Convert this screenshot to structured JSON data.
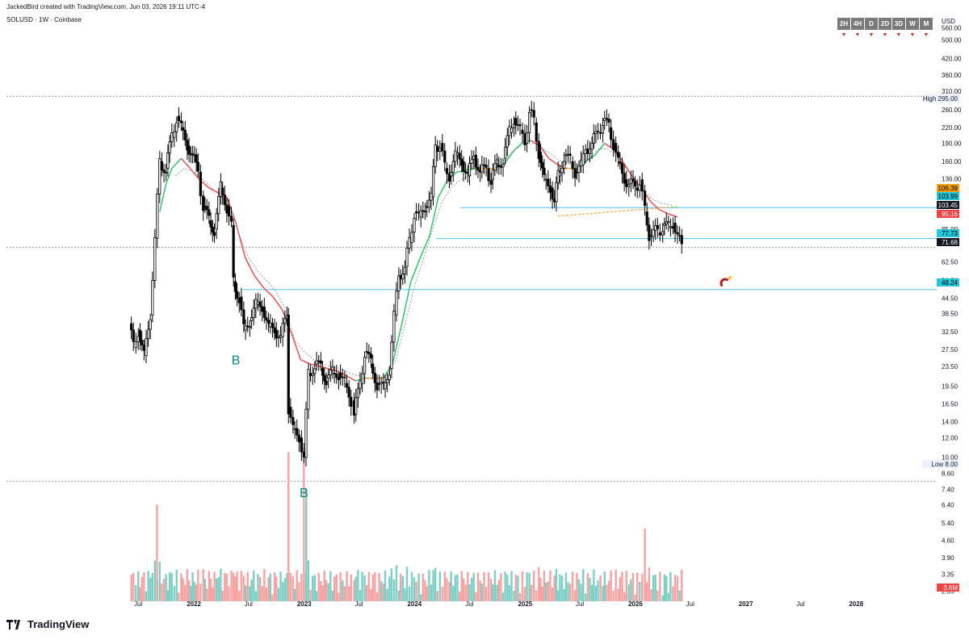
{
  "header": {
    "created_text": "JackedBird created with TradingView.com, Jun 03, 2026 19:11 UTC-4",
    "symbol_text": "SOLUSD · 1W · Coinbase",
    "currency": "USD",
    "timeframes": [
      "2H",
      "4H",
      "D",
      "2D",
      "3D",
      "W",
      "M"
    ]
  },
  "footer": {
    "brand": "TradingView",
    "logo_icon": "tradingview-logo-icon"
  },
  "colors": {
    "up": "#000000",
    "down": "#000000",
    "vol_up": "#7ecfc5",
    "vol_down": "#f5a3a3",
    "ma_up": "#22c55e",
    "ma_down": "#ef4444",
    "ma_mid": "#f59e0b",
    "level_line": "#4fc3f7"
  },
  "chart_data": {
    "type": "candlestick",
    "scale": "log",
    "y_ticks": [
      "560.00",
      "500.00",
      "420.00",
      "360.00",
      "310.00",
      "260.00",
      "220.00",
      "190.00",
      "160.00",
      "136.00",
      "85.00",
      "62.50",
      "52.50",
      "44.50",
      "38.50",
      "32.50",
      "27.50",
      "23.50",
      "19.50",
      "16.50",
      "14.00",
      "12.00",
      "10.00",
      "8.60",
      "7.40",
      "6.40",
      "5.40",
      "4.60",
      "3.90",
      "3.35",
      "2.85"
    ],
    "x_ticks": [
      "Jul",
      "2022",
      "Jul",
      "2023",
      "Jul",
      "2024",
      "Jul",
      "2025",
      "Jul",
      "2026",
      "Jul",
      "2027",
      "Jul",
      "2028"
    ],
    "price_labels": [
      {
        "text": "High 295.00",
        "value": 295,
        "color": "#eef2ff",
        "text_color": "#131722"
      },
      {
        "text": "106.39",
        "value": 106.39,
        "color": "#f59e0b",
        "text_color": "#000"
      },
      {
        "text": "103.99",
        "value": 103.99,
        "color": "#26c6da",
        "text_color": "#000"
      },
      {
        "text": "103.45",
        "value": 103.45,
        "color": "#131722",
        "text_color": "#fff"
      },
      {
        "text": "95.16",
        "value": 95.16,
        "color": "#ef4444",
        "text_color": "#fff"
      },
      {
        "text": "77.73",
        "value": 77.73,
        "color": "#26c6da",
        "text_color": "#000"
      },
      {
        "text": "71.68",
        "value": 71.68,
        "color": "#131722",
        "text_color": "#fff"
      },
      {
        "text": "48.24",
        "value": 48.24,
        "color": "#26c6da",
        "text_color": "#000"
      },
      {
        "text": "Low 8.00",
        "value": 8.0,
        "color": "#eef2ff",
        "text_color": "#131722"
      },
      {
        "text": "3.6M",
        "value": null,
        "color": "#ef4444",
        "text_color": "#fff"
      }
    ],
    "horizontal_levels": [
      295,
      103.99,
      77.73,
      71.68,
      48.24,
      8.0
    ],
    "annotations": [
      {
        "text": "B",
        "date": "2022-05-20",
        "price": 25
      },
      {
        "text": "B",
        "date": "2022-12-31",
        "price": 7.2
      }
    ],
    "series": [
      {
        "name": "SOLUSD",
        "kind": "close",
        "points": [
          [
            "2021-06-01",
            35
          ],
          [
            "2021-06-15",
            28
          ],
          [
            "2021-07-01",
            33
          ],
          [
            "2021-07-20",
            26
          ],
          [
            "2021-08-10",
            38
          ],
          [
            "2021-08-25",
            78
          ],
          [
            "2021-09-10",
            160
          ],
          [
            "2021-10-01",
            150
          ],
          [
            "2021-10-20",
            200
          ],
          [
            "2021-11-05",
            245
          ],
          [
            "2021-11-20",
            220
          ],
          [
            "2021-12-10",
            185
          ],
          [
            "2021-12-28",
            170
          ],
          [
            "2022-01-15",
            145
          ],
          [
            "2022-02-01",
            105
          ],
          [
            "2022-02-20",
            92
          ],
          [
            "2022-03-10",
            85
          ],
          [
            "2022-03-31",
            125
          ],
          [
            "2022-04-20",
            105
          ],
          [
            "2022-05-05",
            88
          ],
          [
            "2022-05-12",
            52
          ],
          [
            "2022-05-31",
            45
          ],
          [
            "2022-06-15",
            33
          ],
          [
            "2022-07-05",
            36
          ],
          [
            "2022-07-25",
            42
          ],
          [
            "2022-08-15",
            41
          ],
          [
            "2022-09-05",
            34
          ],
          [
            "2022-09-25",
            33
          ],
          [
            "2022-10-15",
            31
          ],
          [
            "2022-11-05",
            38
          ],
          [
            "2022-11-10",
            16
          ],
          [
            "2022-11-25",
            13
          ],
          [
            "2022-12-15",
            12
          ],
          [
            "2022-12-31",
            10
          ],
          [
            "2023-01-15",
            22
          ],
          [
            "2023-02-05",
            24
          ],
          [
            "2023-02-25",
            23
          ],
          [
            "2023-03-15",
            21
          ],
          [
            "2023-04-05",
            22
          ],
          [
            "2023-04-25",
            22
          ],
          [
            "2023-05-15",
            20
          ],
          [
            "2023-06-05",
            17
          ],
          [
            "2023-06-15",
            15
          ],
          [
            "2023-07-05",
            20
          ],
          [
            "2023-07-20",
            27
          ],
          [
            "2023-08-10",
            24
          ],
          [
            "2023-08-30",
            20
          ],
          [
            "2023-09-20",
            19
          ],
          [
            "2023-10-10",
            23
          ],
          [
            "2023-10-25",
            38
          ],
          [
            "2023-11-10",
            55
          ],
          [
            "2023-11-30",
            60
          ],
          [
            "2023-12-15",
            75
          ],
          [
            "2023-12-31",
            100
          ],
          [
            "2024-01-15",
            95
          ],
          [
            "2024-02-05",
            105
          ],
          [
            "2024-02-25",
            115
          ],
          [
            "2024-03-10",
            185
          ],
          [
            "2024-03-25",
            190
          ],
          [
            "2024-04-10",
            150
          ],
          [
            "2024-04-25",
            140
          ],
          [
            "2024-05-15",
            170
          ],
          [
            "2024-06-05",
            160
          ],
          [
            "2024-06-25",
            140
          ],
          [
            "2024-07-15",
            170
          ],
          [
            "2024-08-05",
            145
          ],
          [
            "2024-08-25",
            150
          ],
          [
            "2024-09-10",
            135
          ],
          [
            "2024-09-30",
            155
          ],
          [
            "2024-10-20",
            165
          ],
          [
            "2024-11-10",
            210
          ],
          [
            "2024-11-25",
            240
          ],
          [
            "2024-12-15",
            215
          ],
          [
            "2024-12-31",
            190
          ],
          [
            "2025-01-15",
            260
          ],
          [
            "2025-01-30",
            230
          ],
          [
            "2025-02-15",
            175
          ],
          [
            "2025-03-05",
            135
          ],
          [
            "2025-03-25",
            125
          ],
          [
            "2025-04-08",
            110
          ],
          [
            "2025-04-20",
            140
          ],
          [
            "2025-05-10",
            170
          ],
          [
            "2025-05-30",
            160
          ],
          [
            "2025-06-15",
            145
          ],
          [
            "2025-07-05",
            155
          ],
          [
            "2025-07-20",
            180
          ],
          [
            "2025-08-10",
            190
          ],
          [
            "2025-08-30",
            210
          ],
          [
            "2025-09-15",
            235
          ],
          [
            "2025-10-05",
            220
          ],
          [
            "2025-10-20",
            190
          ],
          [
            "2025-11-05",
            160
          ],
          [
            "2025-11-25",
            135
          ],
          [
            "2025-12-10",
            130
          ],
          [
            "2025-12-31",
            125
          ],
          [
            "2026-01-15",
            135
          ],
          [
            "2026-02-01",
            100
          ],
          [
            "2026-02-15",
            80
          ],
          [
            "2026-03-01",
            84
          ],
          [
            "2026-03-15",
            82
          ],
          [
            "2026-04-01",
            88
          ],
          [
            "2026-04-20",
            86
          ],
          [
            "2026-05-05",
            90
          ],
          [
            "2026-05-20",
            80
          ],
          [
            "2026-06-03",
            71.68
          ]
        ]
      },
      {
        "name": "MA fast",
        "kind": "ma",
        "points": [
          [
            "2021-09-10",
            100
          ],
          [
            "2021-10-01",
            130
          ],
          [
            "2021-10-20",
            150
          ],
          [
            "2021-11-20",
            165
          ],
          [
            "2021-12-20",
            150
          ],
          [
            "2022-01-20",
            135
          ],
          [
            "2022-02-20",
            125
          ],
          [
            "2022-03-20",
            120
          ],
          [
            "2022-04-20",
            115
          ],
          [
            "2022-05-20",
            90
          ],
          [
            "2022-06-20",
            65
          ],
          [
            "2022-07-20",
            55
          ],
          [
            "2022-08-20",
            49
          ],
          [
            "2022-09-20",
            45
          ],
          [
            "2022-10-20",
            40
          ],
          [
            "2022-11-20",
            32
          ],
          [
            "2022-12-20",
            25
          ],
          [
            "2023-01-20",
            24
          ],
          [
            "2023-02-20",
            23.5
          ],
          [
            "2023-03-20",
            23
          ],
          [
            "2023-04-20",
            22.5
          ],
          [
            "2023-05-20",
            21.5
          ],
          [
            "2023-06-20",
            20.5
          ],
          [
            "2023-07-20",
            21
          ],
          [
            "2023-08-20",
            21
          ],
          [
            "2023-09-20",
            21
          ],
          [
            "2023-10-20",
            24
          ],
          [
            "2023-11-20",
            35
          ],
          [
            "2023-12-20",
            52
          ],
          [
            "2024-01-20",
            65
          ],
          [
            "2024-02-20",
            80
          ],
          [
            "2024-03-20",
            115
          ],
          [
            "2024-04-20",
            135
          ],
          [
            "2024-05-20",
            145
          ],
          [
            "2024-06-20",
            148
          ],
          [
            "2024-07-20",
            150
          ],
          [
            "2024-08-20",
            150
          ],
          [
            "2024-09-20",
            150
          ],
          [
            "2024-10-20",
            155
          ],
          [
            "2024-11-20",
            175
          ],
          [
            "2024-12-20",
            190
          ],
          [
            "2025-01-20",
            195
          ],
          [
            "2025-02-20",
            185
          ],
          [
            "2025-03-20",
            165
          ],
          [
            "2025-04-20",
            155
          ],
          [
            "2025-05-20",
            150
          ],
          [
            "2025-06-20",
            150
          ],
          [
            "2025-07-20",
            160
          ],
          [
            "2025-08-20",
            170
          ],
          [
            "2025-09-20",
            190
          ],
          [
            "2025-10-20",
            180
          ],
          [
            "2025-11-20",
            160
          ],
          [
            "2025-12-20",
            140
          ],
          [
            "2026-01-20",
            125
          ],
          [
            "2026-02-20",
            110
          ],
          [
            "2026-03-20",
            102
          ],
          [
            "2026-04-20",
            98
          ],
          [
            "2026-05-20",
            95.16
          ]
        ]
      },
      {
        "name": "MA slow",
        "kind": "ma_slow",
        "points": [
          [
            "2021-11-01",
            140
          ],
          [
            "2021-12-01",
            150
          ],
          [
            "2022-01-01",
            145
          ],
          [
            "2022-02-01",
            135
          ],
          [
            "2022-03-01",
            125
          ],
          [
            "2022-04-01",
            115
          ],
          [
            "2022-05-01",
            105
          ],
          [
            "2022-06-01",
            80
          ],
          [
            "2022-07-01",
            65
          ],
          [
            "2022-08-01",
            57
          ],
          [
            "2022-09-01",
            52
          ],
          [
            "2022-10-01",
            47
          ],
          [
            "2022-11-01",
            40
          ],
          [
            "2022-12-01",
            30
          ],
          [
            "2023-01-01",
            27
          ],
          [
            "2023-02-01",
            25
          ],
          [
            "2023-03-01",
            24
          ],
          [
            "2023-04-01",
            23.5
          ],
          [
            "2023-05-01",
            23
          ],
          [
            "2023-06-01",
            22
          ],
          [
            "2023-07-01",
            21.5
          ],
          [
            "2023-08-01",
            21
          ],
          [
            "2023-09-01",
            21
          ],
          [
            "2023-10-01",
            21.5
          ],
          [
            "2023-11-01",
            25
          ],
          [
            "2023-12-01",
            35
          ],
          [
            "2024-01-01",
            50
          ],
          [
            "2024-02-01",
            65
          ],
          [
            "2024-03-01",
            85
          ],
          [
            "2024-04-01",
            110
          ],
          [
            "2024-05-01",
            125
          ],
          [
            "2024-06-01",
            135
          ],
          [
            "2024-07-01",
            140
          ],
          [
            "2024-08-01",
            145
          ],
          [
            "2024-09-01",
            145
          ],
          [
            "2024-10-01",
            148
          ],
          [
            "2024-11-01",
            160
          ],
          [
            "2024-12-01",
            180
          ],
          [
            "2025-01-01",
            190
          ],
          [
            "2025-02-01",
            190
          ],
          [
            "2025-03-01",
            180
          ],
          [
            "2025-04-01",
            170
          ],
          [
            "2025-05-01",
            160
          ],
          [
            "2025-06-01",
            155
          ],
          [
            "2025-07-01",
            155
          ],
          [
            "2025-08-01",
            165
          ],
          [
            "2025-09-01",
            180
          ],
          [
            "2025-10-01",
            180
          ],
          [
            "2025-11-01",
            170
          ],
          [
            "2025-12-01",
            150
          ],
          [
            "2026-01-01",
            135
          ],
          [
            "2026-02-01",
            120
          ],
          [
            "2026-03-01",
            112
          ],
          [
            "2026-04-01",
            108
          ],
          [
            "2026-05-01",
            106.39
          ]
        ]
      }
    ]
  }
}
